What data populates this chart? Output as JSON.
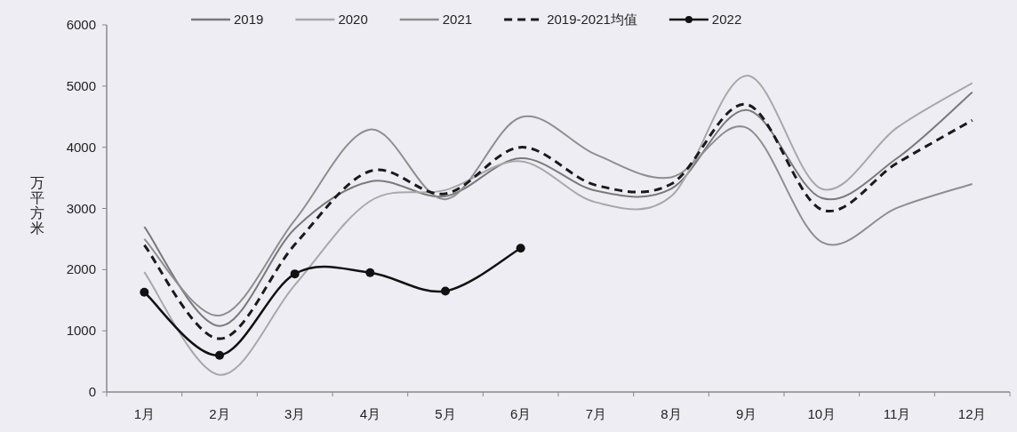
{
  "chart_data": {
    "type": "line",
    "ylabel": "万平方米",
    "categories": [
      "1月",
      "2月",
      "3月",
      "4月",
      "5月",
      "6月",
      "7月",
      "8月",
      "9月",
      "10月",
      "11月",
      "12月"
    ],
    "ylim": [
      0,
      6000
    ],
    "yticks": [
      0,
      1000,
      2000,
      3000,
      4000,
      5000,
      6000
    ],
    "legend": "top",
    "grid": false,
    "series": [
      {
        "name": "2019",
        "color": "#7a7a7a",
        "values": [
          2700,
          1080,
          2670,
          3440,
          3200,
          3820,
          3290,
          3320,
          4610,
          3170,
          3820,
          4900
        ]
      },
      {
        "name": "2020",
        "color": "#a8a8a8",
        "values": [
          1960,
          280,
          1750,
          3120,
          3300,
          3770,
          3100,
          3200,
          5170,
          3320,
          4320,
          5050
        ]
      },
      {
        "name": "2021",
        "color": "#8e8e8e",
        "values": [
          2500,
          1250,
          2810,
          4290,
          3150,
          4490,
          3880,
          3510,
          4320,
          2450,
          3010,
          3400
        ]
      },
      {
        "name": "2019-2021均值",
        "color": "#1a1a1a",
        "line_style": "dashed",
        "values": [
          2400,
          870,
          2410,
          3610,
          3240,
          4000,
          3380,
          3400,
          4700,
          2980,
          3740,
          4440
        ]
      },
      {
        "name": "2022",
        "color": "#111111",
        "marker": "circle",
        "values": [
          1630,
          600,
          1930,
          1950,
          1650,
          2350,
          null,
          null,
          null,
          null,
          null,
          null
        ]
      }
    ]
  }
}
